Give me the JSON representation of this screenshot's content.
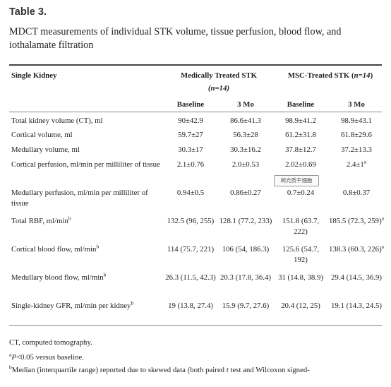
{
  "table_label": "Table 3.",
  "caption": "MDCT measurements of individual STK volume, tissue perfusion, blood flow, and iothalamate filtration",
  "header": {
    "row_label": "Single Kidney",
    "group1": "Medically Treated STK",
    "group1_n": "(n=14)",
    "group2_prefix": "MSC-Treated STK (",
    "group2_n": "n=14",
    "group2_suffix": ")",
    "baseline": "Baseline",
    "mo3": "3 Mo"
  },
  "rows": [
    {
      "label": "Total kidney volume (CT), ml",
      "sup": "",
      "v1": "90±42.9",
      "v2": "86.6±41.3",
      "v3": "98.9±41.2",
      "v4": "98.9±43.1"
    },
    {
      "label": "Cortical volume, ml",
      "sup": "",
      "v1": "59.7±27",
      "v2": "56.3±28",
      "v3": "61.2±31.8",
      "v4": "61.8±29.6"
    },
    {
      "label": "Medullary volume, ml",
      "sup": "",
      "v1": "30.3±17",
      "v2": "30.3±16.2",
      "v3": "37.8±12.7",
      "v4": "37.2±13.3"
    },
    {
      "label": "Cortical perfusion, ml/min per milliliter of tissue",
      "sup": "",
      "v1": "2.1±0.76",
      "v2": "2.0±0.53",
      "v3": "2.02±0.69",
      "v4": "2.4±1",
      "v4_sup": "a"
    },
    {
      "label": "Medullary perfusion, ml/min per milliliter of tissue",
      "sup": "",
      "v1": "0.94±0.5",
      "v2": "0.86±0.27",
      "v3": "0.7±0.24",
      "v4": "0.8±0.37"
    },
    {
      "label": "Total RBF, ml/min",
      "sup": "b",
      "v1": "132.5 (96, 255)",
      "v2": "128.1 (77.2, 233)",
      "v3": "151.8 (63.7, 222)",
      "v4": "185.5 (72.3, 259)",
      "v4_sup": "a"
    },
    {
      "label": "Cortical blood flow, ml/min",
      "sup": "b",
      "v1": "114 (75.7, 221)",
      "v2": "106 (54, 186.3)",
      "v3": "125.6 (54.7, 192)",
      "v4": "138.3 (60.3, 226)",
      "v4_sup": "a"
    },
    {
      "label": "Medullary blood flow, ml/min",
      "sup": "b",
      "v1": "26.3 (11.5, 42.3)",
      "v2": "20.3 (17.8, 36.4)",
      "v3": "31 (14.8, 38.9)",
      "v4": "29.4 (14.5, 36.9)"
    },
    {
      "label": "Single-kidney GFR, ml/min per kidney",
      "sup": "b",
      "v1": "19 (13.8, 27.4)",
      "v2": "15.9 (9.7, 27.6)",
      "v3": "20.4 (12, 25)",
      "v4": "19.1 (14.3, 24.5)"
    }
  ],
  "tooltip": "阅光质干细胞",
  "footnotes": {
    "ct": "CT, computed tomography.",
    "a_sup": "a",
    "a_p": "P",
    "a_text": "<0.05 versus baseline.",
    "b_sup": "b",
    "b_text1": "Median (interquartile range) reported due to skewed data (both paired ",
    "b_t": "t",
    "b_text2": " test and Wilcoxon signed-"
  }
}
